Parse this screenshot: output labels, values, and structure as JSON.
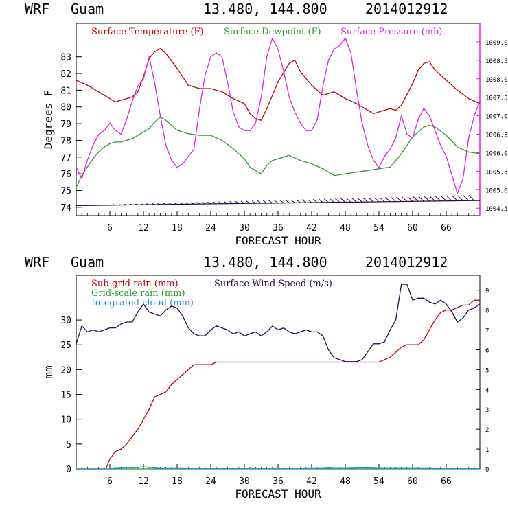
{
  "colors": {
    "temperature": "#c00000",
    "dewpoint": "#2e9a2e",
    "pressure": "#e020e0",
    "subgrid_rain": "#c00000",
    "gridscale_rain": "#2e9a2e",
    "cloud": "#2090d0",
    "wind": "#2a0a4a"
  },
  "chart_data": [
    {
      "type": "line",
      "header": {
        "model": "WRF",
        "site": "Guam",
        "coords": "13.480, 144.800",
        "run": "2014012912"
      },
      "xlabel": "FORECAST HOUR",
      "ylabel": "Degrees F",
      "xlim": [
        0,
        72
      ],
      "ylim": [
        73.5,
        85
      ],
      "y2lim": [
        1004.3,
        1009.5
      ],
      "x_ticks": [
        "6",
        "12",
        "18",
        "24",
        "30",
        "36",
        "42",
        "48",
        "54",
        "60",
        "66"
      ],
      "y_ticks": [
        "74",
        "75",
        "76",
        "77",
        "78",
        "79",
        "80",
        "81",
        "82",
        "83"
      ],
      "y2_ticks": [
        "1004.5",
        "1005.0",
        "1005.5",
        "1006.0",
        "1006.5",
        "1007.0",
        "1007.5",
        "1008.0",
        "1008.5",
        "1009.0"
      ],
      "legend": [
        "Surface Temperature (F)",
        "Surface Dewpoint (F)",
        "Surface Pressure (mb)"
      ],
      "series": [
        {
          "name": "Surface Temperature (F)",
          "axis": "left",
          "x": [
            0,
            2,
            4,
            5,
            6,
            7,
            8,
            9,
            10,
            11,
            12,
            13,
            14,
            15,
            16,
            18,
            20,
            22,
            24,
            26,
            28,
            30,
            31,
            32,
            33,
            34,
            36,
            38,
            39,
            40,
            42,
            44,
            45,
            46,
            48,
            50,
            52,
            53,
            54,
            56,
            57,
            58,
            60,
            61,
            62,
            63,
            64,
            66,
            68,
            70,
            72
          ],
          "y": [
            81.6,
            81.3,
            80.9,
            80.7,
            80.5,
            80.3,
            80.4,
            80.5,
            80.6,
            80.9,
            81.8,
            82.9,
            83.3,
            83.5,
            83.2,
            82.3,
            81.3,
            81.1,
            81.1,
            80.9,
            80.5,
            80.2,
            79.6,
            79.3,
            79.2,
            79.9,
            81.5,
            82.6,
            82.8,
            82.1,
            81.3,
            80.7,
            80.8,
            80.9,
            80.5,
            80.2,
            79.8,
            79.6,
            79.7,
            79.9,
            79.8,
            80.1,
            81.4,
            82.2,
            82.6,
            82.7,
            82.2,
            81.6,
            81.0,
            80.5,
            80.2
          ]
        },
        {
          "name": "Surface Dewpoint (F)",
          "axis": "left",
          "x": [
            0,
            1,
            2,
            3,
            4,
            5,
            6,
            7,
            8,
            9,
            10,
            11,
            12,
            13,
            14,
            15,
            16,
            18,
            20,
            22,
            24,
            26,
            28,
            30,
            31,
            32,
            33,
            34,
            35,
            36,
            38,
            40,
            42,
            44,
            45,
            46,
            48,
            50,
            52,
            54,
            56,
            58,
            60,
            61,
            62,
            63,
            64,
            66,
            68,
            70,
            72
          ],
          "y": [
            75.2,
            75.9,
            76.4,
            76.9,
            77.3,
            77.6,
            77.8,
            77.9,
            77.9,
            78.0,
            78.1,
            78.3,
            78.5,
            78.7,
            79.1,
            79.4,
            79.2,
            78.6,
            78.4,
            78.3,
            78.3,
            78.0,
            77.5,
            76.9,
            76.4,
            76.2,
            76.0,
            76.5,
            76.8,
            76.9,
            77.1,
            76.8,
            76.6,
            76.3,
            76.1,
            75.9,
            76.0,
            76.1,
            76.2,
            76.3,
            76.4,
            77.2,
            78.2,
            78.5,
            78.8,
            78.9,
            78.8,
            78.3,
            77.6,
            77.3,
            77.2
          ]
        },
        {
          "name": "Surface Pressure (mb)",
          "axis": "right",
          "x": [
            0,
            1,
            2,
            3,
            4,
            5,
            6,
            7,
            8,
            9,
            10,
            11,
            12,
            13,
            14,
            15,
            16,
            17,
            18,
            19,
            20,
            21,
            22,
            23,
            24,
            25,
            26,
            27,
            28,
            29,
            30,
            31,
            32,
            33,
            34,
            35,
            36,
            37,
            38,
            39,
            40,
            41,
            42,
            43,
            44,
            45,
            46,
            47,
            48,
            49,
            50,
            51,
            52,
            53,
            54,
            55,
            56,
            57,
            58,
            59,
            60,
            61,
            62,
            63,
            64,
            65,
            66,
            67,
            68,
            69,
            70,
            71,
            72
          ],
          "y": [
            1005.6,
            1005.3,
            1005.8,
            1006.2,
            1006.5,
            1006.6,
            1006.8,
            1006.6,
            1006.5,
            1006.9,
            1007.4,
            1007.8,
            1008.0,
            1008.6,
            1007.9,
            1007.0,
            1006.2,
            1005.8,
            1005.6,
            1005.7,
            1005.9,
            1006.1,
            1007.2,
            1008.1,
            1008.6,
            1008.7,
            1008.6,
            1007.9,
            1007.1,
            1006.7,
            1006.6,
            1006.6,
            1006.8,
            1007.5,
            1008.6,
            1009.1,
            1008.8,
            1008.2,
            1007.5,
            1007.1,
            1006.8,
            1006.6,
            1006.6,
            1006.9,
            1007.8,
            1008.5,
            1008.8,
            1008.9,
            1009.1,
            1008.7,
            1007.7,
            1006.8,
            1006.2,
            1005.8,
            1005.6,
            1005.9,
            1006.1,
            1006.4,
            1007.0,
            1006.5,
            1006.4,
            1006.9,
            1007.2,
            1007.0,
            1006.6,
            1006.2,
            1005.9,
            1005.4,
            1004.9,
            1005.3,
            1006.4,
            1007.0,
            1007.4
          ]
        },
        {
          "name": "Surface wind barbs",
          "axis": "left",
          "x": [
            0,
            72
          ],
          "y": [
            74.1,
            74.4
          ]
        }
      ]
    },
    {
      "type": "line",
      "header": {
        "model": "WRF",
        "site": "Guam",
        "coords": "13.480, 144.800",
        "run": "2014012912"
      },
      "xlabel": "FORECAST HOUR",
      "ylabel": "mm",
      "xlim": [
        0,
        72
      ],
      "ylim": [
        0,
        39
      ],
      "y2lim": [
        0,
        9.75
      ],
      "x_ticks": [
        "6",
        "12",
        "18",
        "24",
        "30",
        "36",
        "42",
        "48",
        "54",
        "60",
        "66"
      ],
      "y_ticks": [
        "0",
        "5",
        "10",
        "15",
        "20",
        "25",
        "30"
      ],
      "y2_ticks": [
        "0",
        "1",
        "2",
        "3",
        "4",
        "5",
        "6",
        "7",
        "8",
        "9"
      ],
      "legend": [
        "Sub-grid rain (mm)",
        "Surface Wind Speed (m/s)",
        "Grid-scale rain (mm)",
        "Integrated cloud (mm)"
      ],
      "series": [
        {
          "name": "Sub-grid rain (mm)",
          "axis": "left",
          "x": [
            0,
            5.3,
            6,
            7,
            8,
            9,
            10,
            11,
            12,
            13,
            14,
            15,
            16,
            17,
            18,
            19,
            20,
            21,
            22,
            24,
            25,
            26,
            30,
            36,
            42,
            48,
            52,
            54,
            55,
            56,
            57,
            58,
            59,
            60,
            61,
            62,
            63,
            64,
            65,
            66,
            67,
            68,
            69,
            70,
            71,
            72
          ],
          "y": [
            0,
            0,
            2,
            3.5,
            4,
            5,
            6.5,
            8,
            10,
            12,
            14.5,
            15,
            15.5,
            17,
            18,
            19,
            20,
            21,
            21,
            21,
            21.5,
            21.5,
            21.5,
            21.5,
            21.5,
            21.5,
            21.5,
            21.5,
            22,
            22.5,
            23.5,
            24.5,
            25,
            25,
            25,
            26,
            28,
            30,
            31.5,
            32,
            32,
            32.5,
            33,
            33,
            34,
            34
          ]
        },
        {
          "name": "Grid-scale rain (mm)",
          "axis": "left",
          "x": [
            0,
            72
          ],
          "y": [
            0,
            0
          ]
        },
        {
          "name": "Integrated cloud (mm)",
          "axis": "left",
          "x": [
            0,
            6,
            7,
            8,
            9,
            10,
            11,
            12,
            13,
            14,
            15,
            20,
            30,
            40,
            44,
            45,
            46,
            48,
            50,
            52,
            54,
            56,
            60,
            66,
            72
          ],
          "y": [
            0,
            0,
            0.1,
            0.2,
            0.3,
            0.2,
            0.3,
            0.4,
            0.3,
            0.2,
            0.1,
            0.05,
            0.05,
            0.05,
            0.1,
            0.2,
            0.1,
            0.1,
            0.2,
            0.2,
            0.1,
            0.1,
            0.1,
            0.05,
            0.05
          ]
        },
        {
          "name": "Surface Wind Speed (m/s)",
          "axis": "right",
          "x": [
            0,
            1,
            2,
            3,
            4,
            5,
            6,
            7,
            8,
            9,
            10,
            11,
            12,
            13,
            14,
            15,
            16,
            17,
            18,
            19,
            20,
            21,
            22,
            23,
            24,
            25,
            26,
            27,
            28,
            29,
            30,
            31,
            32,
            33,
            34,
            35,
            36,
            37,
            38,
            39,
            40,
            41,
            42,
            43,
            44,
            45,
            46,
            47,
            48,
            49,
            50,
            51,
            52,
            53,
            54,
            55,
            56,
            57,
            58,
            59,
            60,
            61,
            62,
            63,
            64,
            65,
            66,
            67,
            68,
            69,
            70,
            71,
            72
          ],
          "y": [
            6.3,
            7.2,
            6.9,
            7.0,
            6.9,
            7.0,
            7.1,
            7.1,
            7.3,
            7.4,
            7.4,
            7.9,
            8.3,
            7.9,
            7.8,
            7.7,
            8.0,
            8.2,
            8.1,
            7.7,
            7.1,
            6.8,
            6.7,
            6.7,
            7.0,
            7.2,
            7.1,
            7.0,
            6.8,
            6.9,
            6.7,
            6.8,
            6.9,
            6.7,
            6.9,
            7.2,
            7.0,
            7.1,
            6.9,
            6.8,
            6.9,
            7.0,
            6.9,
            6.9,
            6.7,
            6.0,
            5.6,
            5.5,
            5.4,
            5.4,
            5.4,
            5.5,
            5.9,
            6.3,
            6.3,
            6.4,
            7.0,
            7.5,
            9.3,
            9.3,
            8.5,
            8.6,
            8.6,
            8.4,
            8.3,
            8.5,
            8.3,
            7.9,
            7.4,
            7.6,
            8.0,
            8.1,
            8.3
          ]
        }
      ]
    }
  ]
}
